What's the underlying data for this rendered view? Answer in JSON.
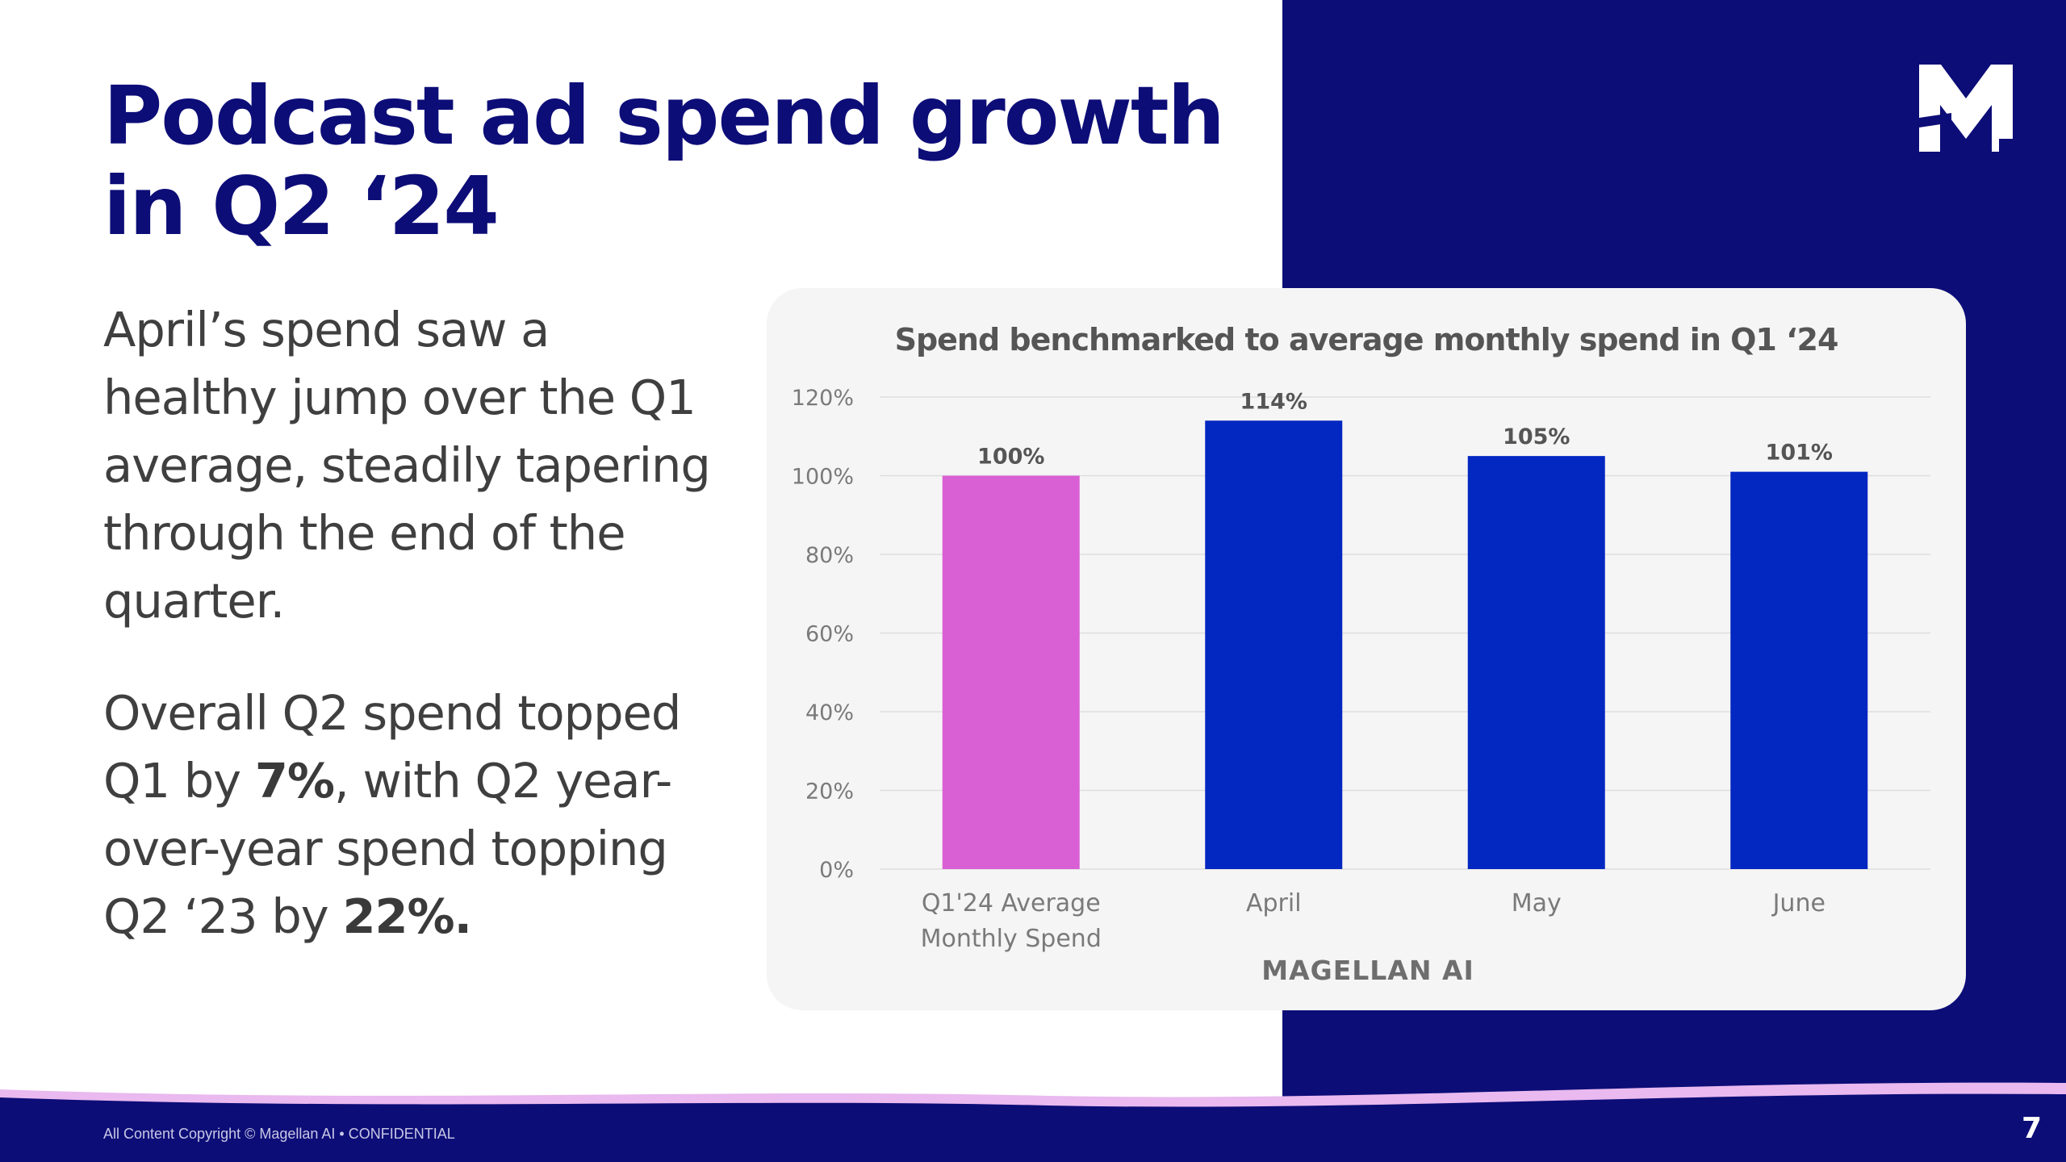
{
  "slide": {
    "title": "Podcast ad spend growth in Q2 ‘24",
    "paragraph1": "April’s spend saw a healthy jump over the Q1 average, steadily tapering through the end of the quarter.",
    "paragraph2": {
      "part1": "Overall Q2 spend topped Q1 by ",
      "bold1": "7%",
      "part2": ", with Q2 year-over-year spend topping Q2 ‘23 by ",
      "bold2": "22%."
    },
    "footer": "All Content Copyright © Magellan AI • CONFIDENTIAL",
    "page_number": "7",
    "logo_icon": "magellan-m-logo-icon",
    "colors": {
      "navy": "#0d0d78",
      "bar_blue": "#0327c1",
      "bar_pink": "#d95fd4",
      "footer_wave": "#e9b9ef"
    }
  },
  "chart_data": {
    "type": "bar",
    "title": "Spend benchmarked to average monthly spend in Q1 ‘24",
    "categories": [
      [
        "Q1'24 Average",
        "Monthly Spend"
      ],
      [
        "April"
      ],
      [
        "May"
      ],
      [
        "June"
      ]
    ],
    "values": [
      100,
      114,
      105,
      101
    ],
    "data_labels": [
      "100%",
      "114%",
      "105%",
      "101%"
    ],
    "colors": [
      "#d95fd4",
      "#0327c1",
      "#0327c1",
      "#0327c1"
    ],
    "ylim": [
      0,
      120
    ],
    "yticks": [
      0,
      20,
      40,
      60,
      80,
      100,
      120
    ],
    "ytick_labels": [
      "0%",
      "20%",
      "40%",
      "60%",
      "80%",
      "100%",
      "120%"
    ],
    "grid": true,
    "xlabel": "",
    "ylabel": "",
    "watermark": "MAGELLAN AI"
  }
}
